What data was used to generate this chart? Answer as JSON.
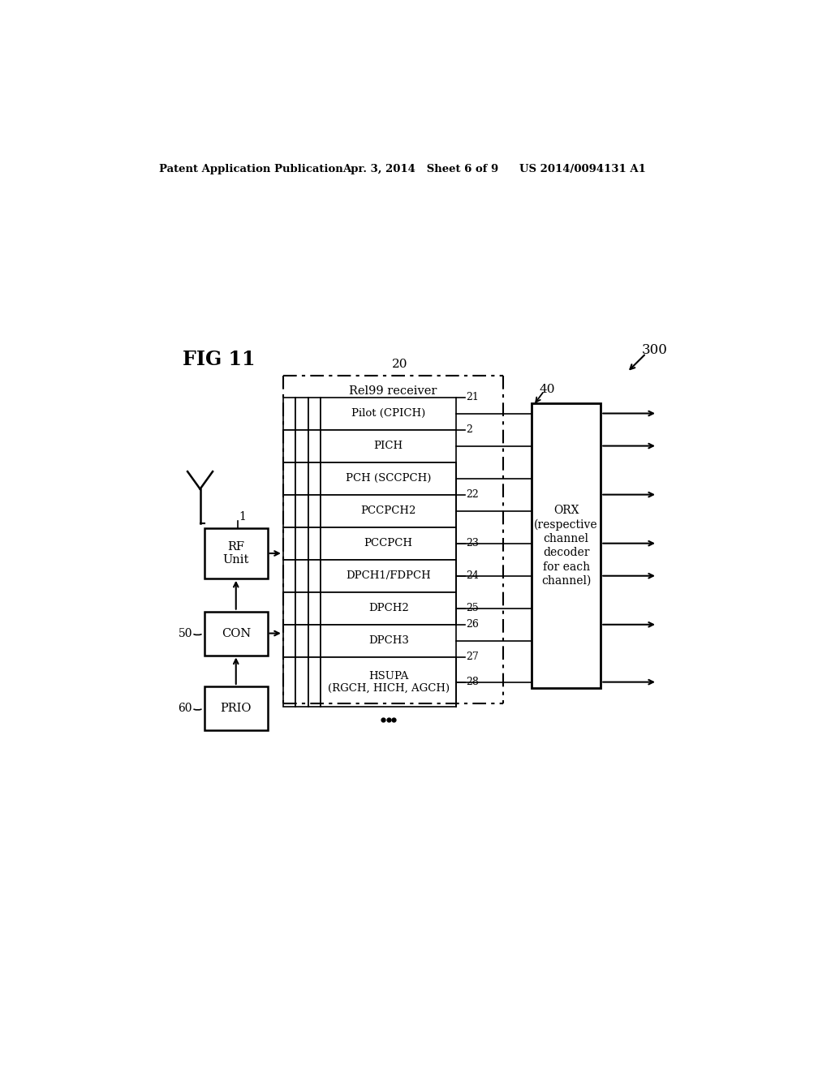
{
  "bg_color": "#ffffff",
  "fig_label": "FIG 11",
  "header_left": "Patent Application Publication",
  "header_mid": "Apr. 3, 2014   Sheet 6 of 9",
  "header_right": "US 2014/0094131 A1",
  "title_20": "20",
  "rel99_label": "Rel99 receiver",
  "channels": [
    "Pilot (CPICH)",
    "PICH",
    "PCH (SCCPCH)",
    "PCCPCH2",
    "PCCPCH",
    "DPCH1/FDPCH",
    "DPCH2",
    "DPCH3",
    "HSUPA\n(RGCH, HICH, AGCH)"
  ],
  "orx_label": "ORX\n(respective\nchannel\ndecoder\nfor each\nchannel)",
  "orx_num": "40",
  "system_num": "300",
  "rf_label": "RF\nUnit",
  "rf_num": "1",
  "con_label": "CON",
  "con_num": "50",
  "prio_label": "PRIO",
  "prio_num": "60"
}
